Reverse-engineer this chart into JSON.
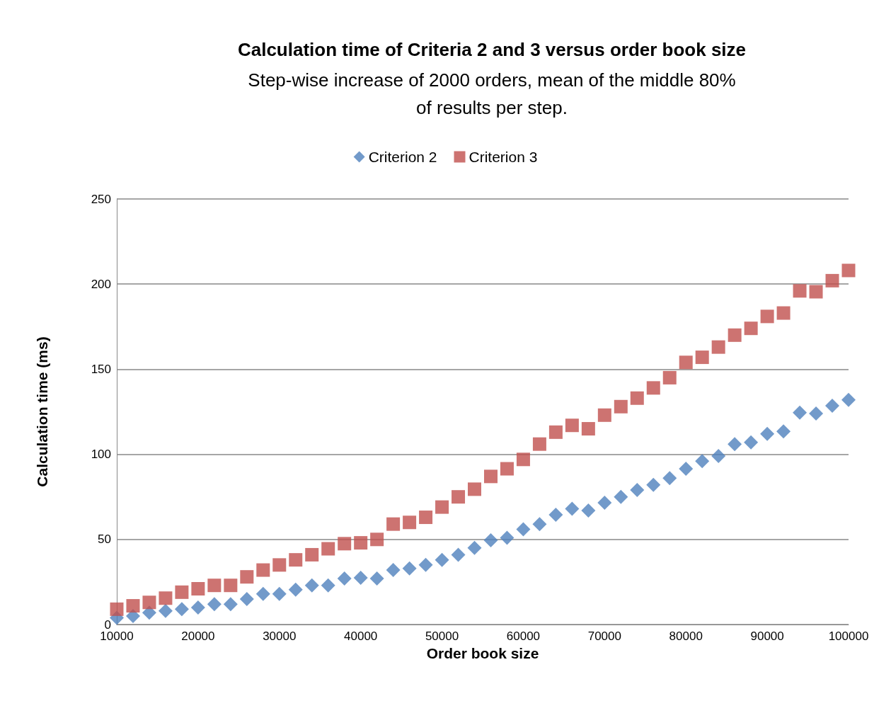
{
  "chart_data": {
    "type": "scatter",
    "title": "Calculation time of Criteria 2 and 3 versus order book size",
    "subtitle": "Step-wise increase of 2000 orders, mean of the middle 80%\nof results per step.",
    "xlabel": "Order book size",
    "ylabel": "Calculation time (ms)",
    "x": [
      10000,
      12000,
      14000,
      16000,
      18000,
      20000,
      22000,
      24000,
      26000,
      28000,
      30000,
      32000,
      34000,
      36000,
      38000,
      40000,
      42000,
      44000,
      46000,
      48000,
      50000,
      52000,
      54000,
      56000,
      58000,
      60000,
      62000,
      64000,
      66000,
      68000,
      70000,
      72000,
      74000,
      76000,
      78000,
      80000,
      82000,
      84000,
      86000,
      88000,
      90000,
      92000,
      94000,
      96000,
      98000,
      100000
    ],
    "series": [
      {
        "name": "Criterion 2",
        "color": "#4f81bd",
        "marker": "diamond",
        "values": [
          4,
          5,
          7,
          8,
          9,
          10,
          12,
          12,
          15,
          18,
          18,
          20.5,
          23,
          23,
          27,
          27.5,
          27,
          32,
          33,
          35,
          38,
          41,
          45,
          49.5,
          51,
          56,
          59,
          64.5,
          68,
          67,
          71.5,
          75,
          79,
          82,
          86,
          91.5,
          96,
          99,
          106,
          107,
          112,
          113.5,
          124.5,
          124,
          128.5,
          132
        ]
      },
      {
        "name": "Criterion 3",
        "color": "#c0504d",
        "marker": "square",
        "values": [
          9,
          11,
          13,
          15.5,
          19,
          21,
          23,
          23,
          28,
          32,
          35,
          38,
          41,
          44.5,
          47.5,
          48,
          50,
          59,
          60,
          63,
          69,
          75,
          79.5,
          87,
          91.5,
          97,
          106,
          113,
          117,
          115,
          123,
          128,
          133,
          139,
          145,
          154,
          157,
          163,
          170,
          174,
          181,
          183,
          196,
          195.5,
          202,
          208
        ]
      }
    ],
    "xlim": [
      10000,
      100000
    ],
    "xticks": [
      10000,
      20000,
      30000,
      40000,
      50000,
      60000,
      70000,
      80000,
      90000,
      100000
    ],
    "ylim": [
      0,
      250
    ],
    "yticks": [
      0,
      50,
      100,
      150,
      200,
      250
    ],
    "grid": "y",
    "legend": "top"
  }
}
